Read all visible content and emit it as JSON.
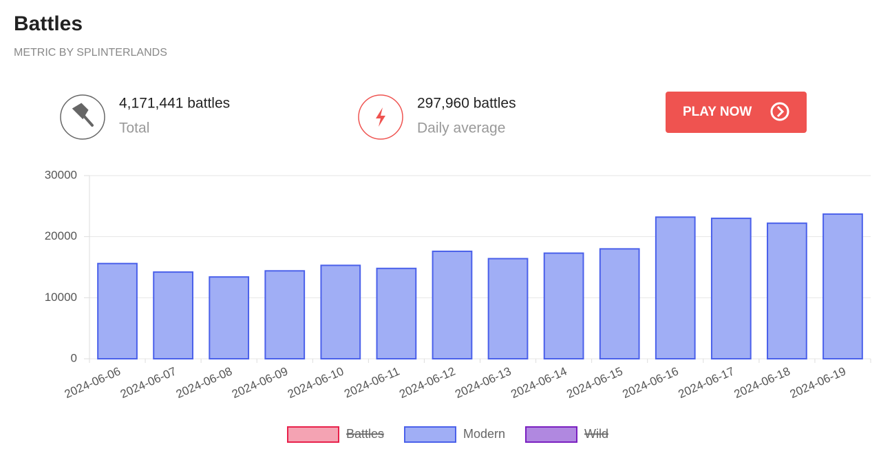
{
  "header": {
    "title": "Battles",
    "subtitle": "METRIC BY SPLINTERLANDS"
  },
  "stats": [
    {
      "value": "4,171,441 battles",
      "label": "Total"
    },
    {
      "value": "297,960 battles",
      "label": "Daily average"
    }
  ],
  "button": {
    "label": "PLAY NOW"
  },
  "chart_data": {
    "type": "bar",
    "categories": [
      "2024-06-06",
      "2024-06-07",
      "2024-06-08",
      "2024-06-09",
      "2024-06-10",
      "2024-06-11",
      "2024-06-12",
      "2024-06-13",
      "2024-06-14",
      "2024-06-15",
      "2024-06-16",
      "2024-06-17",
      "2024-06-18",
      "2024-06-19"
    ],
    "series": [
      {
        "name": "Battles",
        "color": "#e8204a",
        "fill": "#f4a3b3",
        "hidden": true
      },
      {
        "name": "Modern",
        "color": "#4a60ea",
        "fill": "#a0aef5",
        "values": [
          15600,
          14200,
          13400,
          14400,
          15300,
          14800,
          17600,
          16400,
          17300,
          18000,
          23200,
          23000,
          22200,
          23700
        ]
      },
      {
        "name": "Wild",
        "color": "#7a1fc0",
        "fill": "#b088e0",
        "hidden": true
      }
    ],
    "ylim": [
      0,
      30000
    ],
    "yticks": [
      0,
      10000,
      20000,
      30000
    ],
    "grid": true
  }
}
